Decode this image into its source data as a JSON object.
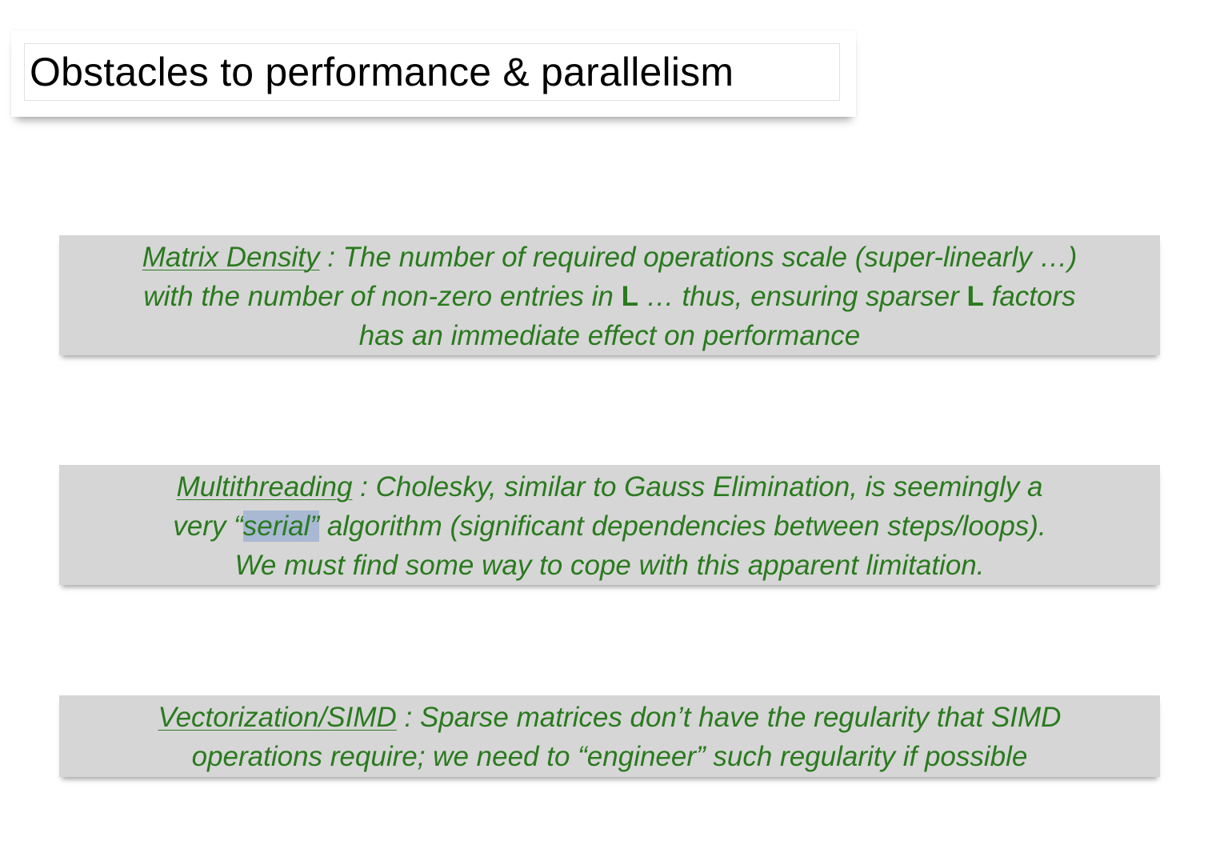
{
  "title": "Obstacles to performance & parallelism",
  "boxes": [
    {
      "term": "Matrix Density",
      "line1_rest": " : The number of required operations scale (super-linearly …)",
      "line2_a": "with the number of non-zero entries in ",
      "line2_b1": "L",
      "line2_c": " … thus, ensuring sparser ",
      "line2_b2": "L",
      "line2_d": " factors",
      "line3": "has an immediate effect on performance"
    },
    {
      "term": "Multithreading",
      "line1_rest": " : Cholesky, similar to Gauss Elimination, is seemingly a",
      "line2_a": "very “",
      "line2_hl": "serial”",
      "line2_b": " algorithm (significant dependencies between steps/loops).",
      "line3": "We must find some way to cope with this apparent limitation."
    },
    {
      "term": "Vectorization/SIMD",
      "line1_rest": " : Sparse matrices don’t have the regularity that SIMD",
      "line2": "operations require; we need to “engineer” such regularity if possible"
    }
  ],
  "colors": {
    "text_green": "#2a7a1e",
    "box_gray": "#d6d6d6",
    "highlight": "#a9b9d4"
  }
}
